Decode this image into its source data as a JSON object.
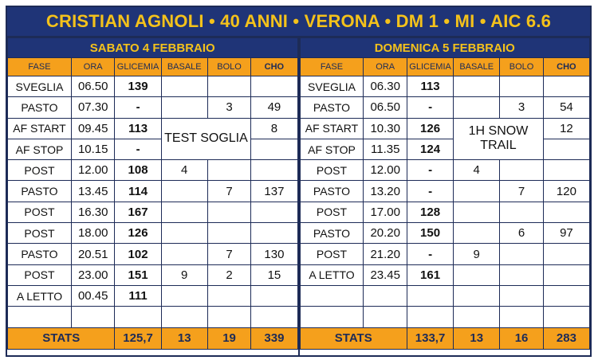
{
  "title": "CRISTIAN AGNOLI • 40 ANNI • VERONA • DM 1 • MI • AIC 6.6",
  "columns": [
    "FASE",
    "ORA",
    "GLICEMIA",
    "BASALE",
    "BOLO",
    "CHO"
  ],
  "days": [
    {
      "header": "SABATO 4 FEBBRAIO",
      "note": "TEST SOGLIA",
      "rows": [
        {
          "fase": "SVEGLIA",
          "ora": "06.50",
          "glicemia": "139",
          "basale": "",
          "bolo": "",
          "cho": ""
        },
        {
          "fase": "PASTO",
          "ora": "07.30",
          "glicemia": "-",
          "basale": "",
          "bolo": "3",
          "cho": "49"
        },
        {
          "fase": "AF START",
          "ora": "09.45",
          "glicemia": "113",
          "basale": "",
          "bolo": "",
          "cho": "8"
        },
        {
          "fase": "AF STOP",
          "ora": "10.15",
          "glicemia": "-",
          "basale": "",
          "bolo": "",
          "cho": ""
        },
        {
          "fase": "POST",
          "ora": "12.00",
          "glicemia": "108",
          "basale": "4",
          "bolo": "",
          "cho": ""
        },
        {
          "fase": "PASTO",
          "ora": "13.45",
          "glicemia": "114",
          "basale": "",
          "bolo": "7",
          "cho": "137"
        },
        {
          "fase": "POST",
          "ora": "16.30",
          "glicemia": "167",
          "basale": "",
          "bolo": "",
          "cho": ""
        },
        {
          "fase": "POST",
          "ora": "18.00",
          "glicemia": "126",
          "basale": "",
          "bolo": "",
          "cho": ""
        },
        {
          "fase": "PASTO",
          "ora": "20.51",
          "glicemia": "102",
          "basale": "",
          "bolo": "7",
          "cho": "130"
        },
        {
          "fase": "POST",
          "ora": "23.00",
          "glicemia": "151",
          "basale": "9",
          "bolo": "2",
          "cho": "15"
        },
        {
          "fase": "A LETTO",
          "ora": "00.45",
          "glicemia": "111",
          "basale": "",
          "bolo": "",
          "cho": ""
        },
        {
          "fase": "",
          "ora": "",
          "glicemia": "",
          "basale": "",
          "bolo": "",
          "cho": ""
        }
      ],
      "stats": {
        "label": "STATS",
        "glicemia": "125,7",
        "basale": "13",
        "bolo": "19",
        "cho": "339"
      }
    },
    {
      "header": "DOMENICA 5 FEBBRAIO",
      "note": "1H SNOW TRAIL",
      "rows": [
        {
          "fase": "SVEGLIA",
          "ora": "06.30",
          "glicemia": "113",
          "basale": "",
          "bolo": "",
          "cho": ""
        },
        {
          "fase": "PASTO",
          "ora": "06.50",
          "glicemia": "-",
          "basale": "",
          "bolo": "3",
          "cho": "54"
        },
        {
          "fase": "AF START",
          "ora": "10.30",
          "glicemia": "126",
          "basale": "",
          "bolo": "",
          "cho": "12"
        },
        {
          "fase": "AF STOP",
          "ora": "11.35",
          "glicemia": "124",
          "basale": "",
          "bolo": "",
          "cho": ""
        },
        {
          "fase": "POST",
          "ora": "12.00",
          "glicemia": "-",
          "basale": "4",
          "bolo": "",
          "cho": ""
        },
        {
          "fase": "PASTO",
          "ora": "13.20",
          "glicemia": "-",
          "basale": "",
          "bolo": "7",
          "cho": "120"
        },
        {
          "fase": "POST",
          "ora": "17.00",
          "glicemia": "128",
          "basale": "",
          "bolo": "",
          "cho": ""
        },
        {
          "fase": "PASTO",
          "ora": "20.20",
          "glicemia": "150",
          "basale": "",
          "bolo": "6",
          "cho": "97"
        },
        {
          "fase": "POST",
          "ora": "21.20",
          "glicemia": "-",
          "basale": "9",
          "bolo": "",
          "cho": ""
        },
        {
          "fase": "A LETTO",
          "ora": "23.45",
          "glicemia": "161",
          "basale": "",
          "bolo": "",
          "cho": ""
        },
        {
          "fase": "",
          "ora": "",
          "glicemia": "",
          "basale": "",
          "bolo": "",
          "cho": ""
        },
        {
          "fase": "",
          "ora": "",
          "glicemia": "",
          "basale": "",
          "bolo": "",
          "cho": ""
        }
      ],
      "stats": {
        "label": "STATS",
        "glicemia": "133,7",
        "basale": "13",
        "bolo": "16",
        "cho": "283"
      }
    }
  ]
}
